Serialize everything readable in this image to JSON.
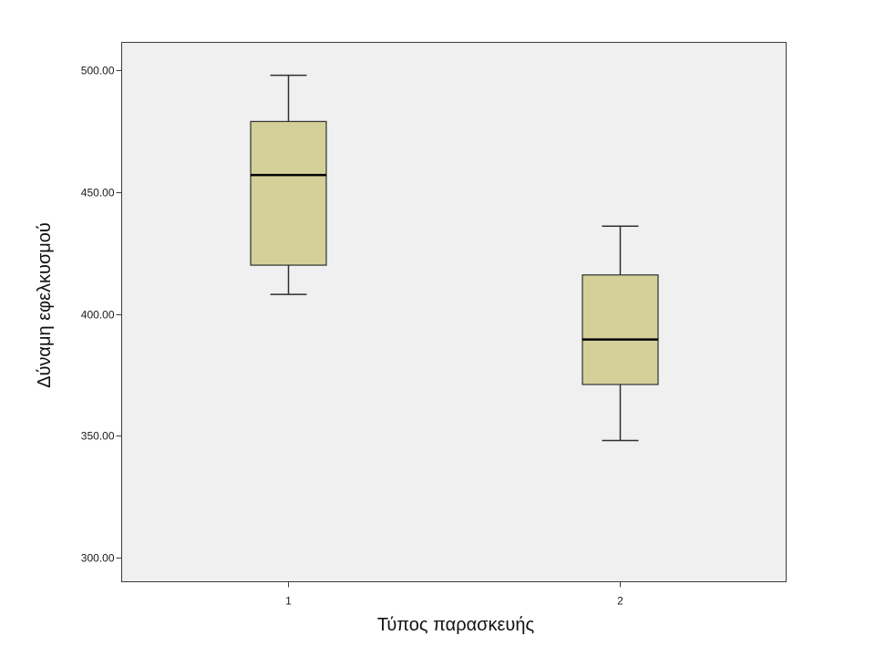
{
  "chart_data": {
    "type": "box",
    "title": "",
    "xlabel": "Τύπος παρασκευής",
    "ylabel": "Δύναμη εφελκυσμού",
    "ylim": [
      290.0,
      511.5
    ],
    "yticks": [
      300,
      350,
      400,
      450,
      500
    ],
    "ytick_labels": [
      "300.00",
      "350.00",
      "400.00",
      "450.00",
      "500.00"
    ],
    "grid": false,
    "legend": "none",
    "categories": [
      "1",
      "2"
    ],
    "boxes": [
      {
        "category": "1",
        "whisker_low": 408,
        "q1": 420,
        "median": 457,
        "q3": 479,
        "whisker_high": 498
      },
      {
        "category": "2",
        "whisker_low": 348,
        "q1": 371,
        "median": 389.5,
        "q3": 416,
        "whisker_high": 436
      }
    ],
    "colors": {
      "plot_background": "#f0f0f0",
      "box_fill": "#d5d09a",
      "box_stroke": "#2f2f2f",
      "median": "#000000"
    }
  }
}
